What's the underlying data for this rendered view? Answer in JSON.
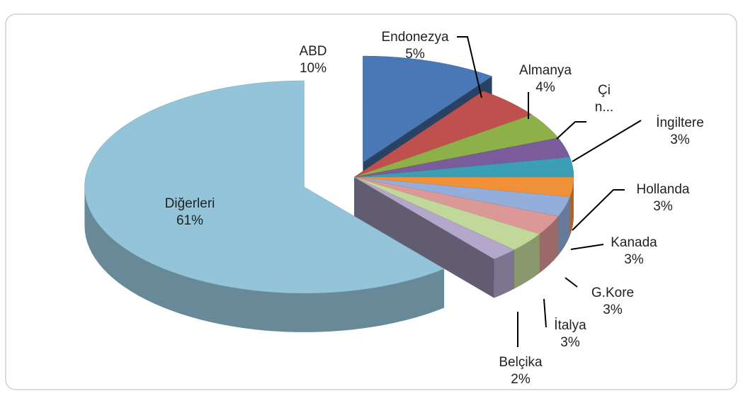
{
  "chart_data": {
    "type": "pie3d",
    "categories": [
      "ABD",
      "Endonezya",
      "Almanya",
      "Çi\nn...",
      "İngiltere",
      "Hollanda",
      "Kanada",
      "G.Kore",
      "İtalya",
      "Belçika",
      "Diğerleri"
    ],
    "values": [
      10,
      5,
      4,
      3,
      3,
      3,
      3,
      3,
      3,
      2,
      61
    ],
    "value_labels": [
      "10%",
      "5%",
      "4%",
      null,
      "3%",
      "3%",
      "3%",
      "3%",
      "3%",
      "2%",
      "61%"
    ],
    "colors": [
      "#4a78b6",
      "#c0504d",
      "#8db048",
      "#7a5c9c",
      "#3c9fb6",
      "#f0913a",
      "#93aedb",
      "#dc9896",
      "#c2d79a",
      "#b3a7cb",
      "#93c4d9"
    ]
  }
}
